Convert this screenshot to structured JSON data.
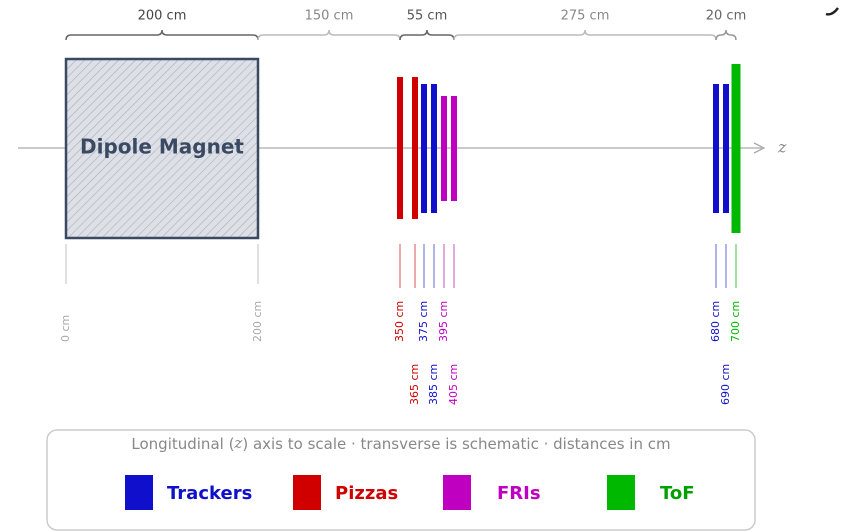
{
  "dimensions": [
    "200 cm",
    "150 cm",
    "55 cm",
    "275 cm",
    "20 cm"
  ],
  "magnet": {
    "label": "Dipole Magnet"
  },
  "axis_label": "z",
  "positions": [
    "0 cm",
    "200 cm",
    "350 cm",
    "365 cm",
    "375 cm",
    "385 cm",
    "395 cm",
    "405 cm",
    "680 cm",
    "690 cm",
    "700 cm"
  ],
  "legend": {
    "caption": [
      "Longitudinal (",
      "z",
      ") axis to scale · transverse is schematic · distances in cm"
    ],
    "items": [
      "Trackers",
      "Pizzas",
      "FRIs",
      "ToF"
    ]
  }
}
